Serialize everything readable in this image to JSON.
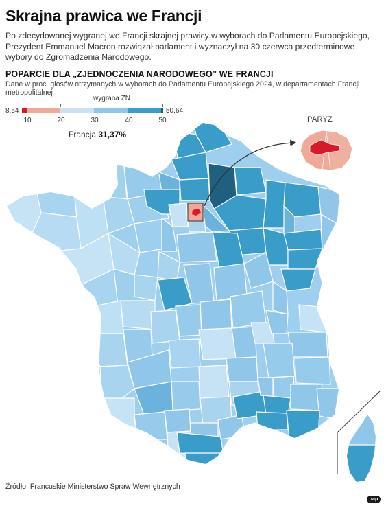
{
  "header": {
    "title": "Skrajna prawica we Francji",
    "intro": "Po zdecydowanej wygranej we Francji skrajnej prawicy w wyborach do Parlamentu Europejskiego, Prezydent Emmanuel Macron rozwiązał parlament i wyznaczył na 30 czerwca przedterminowe wybory do Zgromadzenia Narodowego."
  },
  "section": {
    "heading": "POPARCIE DLA „ZJEDNOCZENIA NARODOWEGO” WE FRANCJI",
    "subtitle": "Dane w proc. głosów otrzymanych w wyborach do Parlamentu Europejskiego 2024, w departamentach Francji metropolitalnej"
  },
  "legend": {
    "scale_label": "wygrana ZN",
    "min": "8,54",
    "max": "50,64",
    "ticks": [
      "10",
      "20",
      "30",
      "40",
      "50"
    ],
    "national_label": "Francja",
    "national_value": "31,37%",
    "national_value_num": 31.37,
    "bins": [
      {
        "from": 8.54,
        "to": 10,
        "color": "#d7192a"
      },
      {
        "from": 10,
        "to": 20,
        "color": "#f0a898"
      },
      {
        "from": 20,
        "to": 30,
        "color": "#c9e3f5"
      },
      {
        "from": 30,
        "to": 40,
        "color": "#8fc6ea"
      },
      {
        "from": 40,
        "to": 50,
        "color": "#3a9cc9"
      },
      {
        "from": 50,
        "to": 50.64,
        "color": "#1f5f80"
      }
    ]
  },
  "inset": {
    "title": "PARYŻ"
  },
  "footer": {
    "source": "Źródło: Francuskie Ministerstwo Spraw Wewnętrznych",
    "logo": "pap"
  }
}
